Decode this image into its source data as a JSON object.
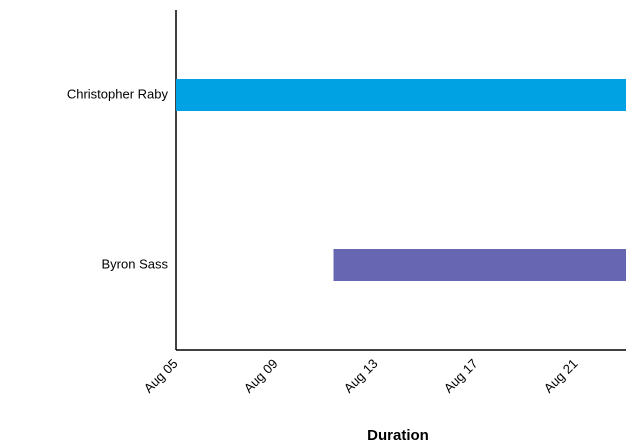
{
  "chart_data": {
    "type": "gantt",
    "categories": [
      "Christopher Raby",
      "Byron Sass"
    ],
    "start": [
      5,
      11.3
    ],
    "end": [
      23,
      23
    ],
    "colors": [
      "#00a2e3",
      "#6666b3"
    ],
    "xlabel": "Duration",
    "xlim": [
      5,
      23
    ],
    "xticks": [
      {
        "value": 5,
        "label": "Aug 05"
      },
      {
        "value": 9,
        "label": "Aug 09"
      },
      {
        "value": 13,
        "label": "Aug 13"
      },
      {
        "value": 17,
        "label": "Aug 17"
      },
      {
        "value": 21,
        "label": "Aug 21"
      }
    ],
    "grid": false
  }
}
